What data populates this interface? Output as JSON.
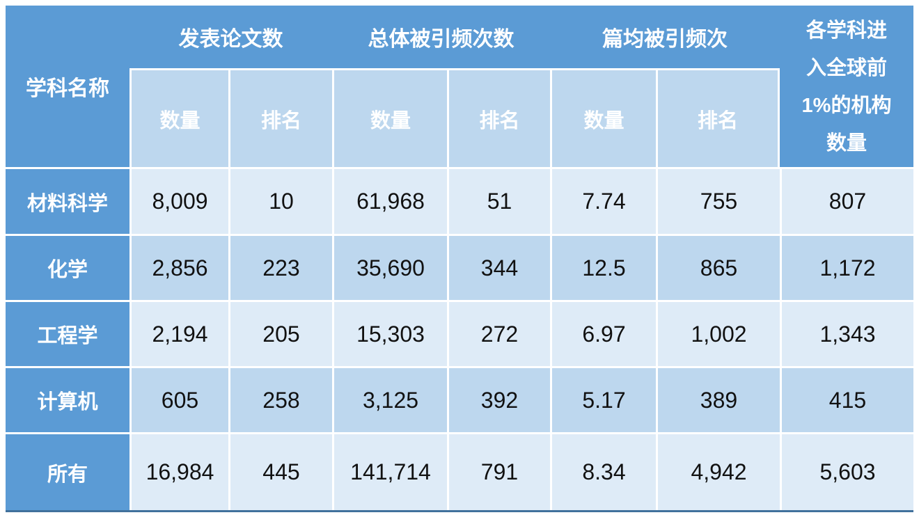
{
  "table": {
    "corner_header": "学科名称",
    "group_headers": [
      {
        "label": "发表论文数",
        "subcolumns": [
          "数量",
          "排名"
        ]
      },
      {
        "label": "总体被引频次数",
        "subcolumns": [
          "数量",
          "排名"
        ]
      },
      {
        "label": "篇均被引频次",
        "subcolumns": [
          "数量",
          "排名"
        ]
      }
    ],
    "merged_header": {
      "label": "各学科进入全球前1%的机构数量",
      "lines": [
        "各学科进",
        "入全球前",
        "1%的机构",
        "数量"
      ]
    },
    "rows": [
      {
        "subject": "材料科学",
        "values": [
          "8,009",
          "10",
          "61,968",
          "51",
          "7.74",
          "755",
          "807"
        ]
      },
      {
        "subject": "化学",
        "values": [
          "2,856",
          "223",
          "35,690",
          "344",
          "12.5",
          "865",
          "1,172"
        ]
      },
      {
        "subject": "工程学",
        "values": [
          "2,194",
          "205",
          "15,303",
          "272",
          "6.97",
          "1,002",
          "1,343"
        ]
      },
      {
        "subject": "计算机",
        "values": [
          "605",
          "258",
          "3,125",
          "392",
          "5.17",
          "389",
          "415"
        ]
      },
      {
        "subject": "所有",
        "values": [
          "16,984",
          "445",
          "141,714",
          "791",
          "8.34",
          "4,942",
          "5,603"
        ]
      }
    ],
    "colors": {
      "header_blue": "#5B9BD5",
      "subheader_blue": "#BDD7EE",
      "row_light": "#DEEBF7",
      "row_medium": "#BDD7EE",
      "cell_border": "#FFFFFF",
      "bottom_rule": "#41719C",
      "header_text": "#FFFFFF",
      "data_text": "#111111"
    }
  },
  "chart_data": {
    "type": "table",
    "title": "",
    "columns": [
      "学科名称",
      "发表论文数 数量",
      "发表论文数 排名",
      "总体被引频次数 数量",
      "总体被引频次数 排名",
      "篇均被引频次 数量",
      "篇均被引频次 排名",
      "各学科进入全球前1%的机构数量"
    ],
    "rows": [
      [
        "材料科学",
        8009,
        10,
        61968,
        51,
        7.74,
        755,
        807
      ],
      [
        "化学",
        2856,
        223,
        35690,
        344,
        12.5,
        865,
        1172
      ],
      [
        "工程学",
        2194,
        205,
        15303,
        272,
        6.97,
        1002,
        1343
      ],
      [
        "计算机",
        605,
        258,
        3125,
        392,
        5.17,
        389,
        415
      ],
      [
        "所有",
        16984,
        445,
        141714,
        791,
        8.34,
        4942,
        5603
      ]
    ]
  }
}
